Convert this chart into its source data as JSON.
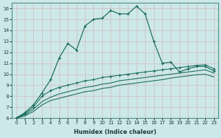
{
  "xlabel": "Humidex (Indice chaleur)",
  "xlim": [
    -0.5,
    23.5
  ],
  "ylim": [
    6,
    16.5
  ],
  "yticks": [
    6,
    7,
    8,
    9,
    10,
    11,
    12,
    13,
    14,
    15,
    16
  ],
  "xticks": [
    0,
    1,
    2,
    3,
    4,
    5,
    6,
    7,
    8,
    9,
    10,
    11,
    12,
    13,
    14,
    15,
    16,
    17,
    18,
    19,
    20,
    21,
    22,
    23
  ],
  "bg_color": "#cce8e8",
  "grid_color": "#b8d8d8",
  "line_color": "#1a6b5a",
  "line1_x": [
    0,
    1,
    2,
    3,
    4,
    5,
    6,
    7,
    8,
    9,
    10,
    11,
    12,
    13,
    14,
    15,
    16,
    17,
    18,
    19,
    20,
    21,
    22,
    23
  ],
  "line1_y": [
    6.0,
    6.5,
    7.2,
    8.3,
    9.5,
    11.5,
    12.8,
    12.2,
    14.4,
    15.0,
    15.1,
    15.8,
    15.5,
    15.5,
    16.2,
    15.5,
    13.0,
    11.0,
    11.1,
    10.2,
    10.5,
    10.7,
    10.7,
    10.3
  ],
  "line2_x": [
    0,
    1,
    2,
    3,
    4,
    5,
    6,
    7,
    8,
    9,
    10,
    11,
    12,
    13,
    14,
    15,
    16,
    17,
    18,
    19,
    20,
    21,
    22,
    23
  ],
  "line2_y": [
    6.0,
    6.4,
    7.0,
    8.0,
    8.5,
    8.8,
    9.0,
    9.2,
    9.4,
    9.5,
    9.7,
    9.8,
    9.9,
    10.0,
    10.1,
    10.2,
    10.3,
    10.4,
    10.5,
    10.6,
    10.7,
    10.8,
    10.85,
    10.5
  ],
  "line3_x": [
    0,
    1,
    2,
    3,
    4,
    5,
    6,
    7,
    8,
    9,
    10,
    11,
    12,
    13,
    14,
    15,
    16,
    17,
    18,
    19,
    20,
    21,
    22,
    23
  ],
  "line3_y": [
    6.0,
    6.3,
    6.8,
    7.5,
    7.9,
    8.2,
    8.4,
    8.6,
    8.8,
    8.9,
    9.1,
    9.2,
    9.4,
    9.5,
    9.6,
    9.7,
    9.8,
    9.9,
    10.0,
    10.1,
    10.2,
    10.3,
    10.4,
    10.1
  ],
  "line4_x": [
    0,
    1,
    2,
    3,
    4,
    5,
    6,
    7,
    8,
    9,
    10,
    11,
    12,
    13,
    14,
    15,
    16,
    17,
    18,
    19,
    20,
    21,
    22,
    23
  ],
  "line4_y": [
    6.0,
    6.2,
    6.6,
    7.2,
    7.6,
    7.8,
    8.0,
    8.2,
    8.4,
    8.5,
    8.7,
    8.8,
    9.0,
    9.1,
    9.2,
    9.3,
    9.4,
    9.5,
    9.65,
    9.75,
    9.85,
    9.95,
    10.0,
    9.75
  ]
}
